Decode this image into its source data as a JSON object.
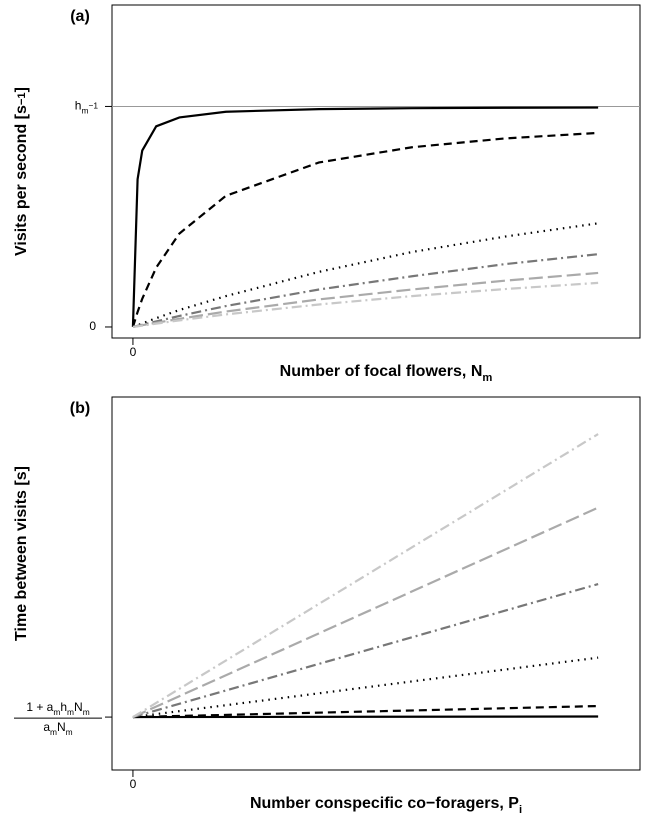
{
  "chart_data": [
    {
      "type": "line",
      "panel": "(a)",
      "ylabel": [
        {
          "text": "Visits per second [s"
        },
        {
          "text": "−1",
          "shift": "sup"
        },
        {
          "text": "]"
        }
      ],
      "xlabel": [
        {
          "text": "Number of focal flowers, N"
        },
        {
          "text": "m",
          "shift": "sub"
        }
      ],
      "x": [
        0,
        0.01,
        0.02,
        0.05,
        0.1,
        0.2,
        0.4,
        0.6,
        0.8,
        1.0
      ],
      "xlim": [
        -0.045,
        1.09
      ],
      "xticks": [
        0
      ],
      "ylim": [
        -0.05,
        1.46
      ],
      "yticks": [
        0,
        {
          "value": 1,
          "label": [
            {
              "text": "h"
            },
            {
              "text": "m",
              "shift": "sub"
            },
            {
              "text": "−1",
              "shift": "sup"
            }
          ]
        }
      ],
      "reference_line": 1,
      "series": [
        {
          "color": "#000000",
          "dash": "solid",
          "values": [
            0,
            0.67,
            0.8,
            0.91,
            0.95,
            0.976,
            0.988,
            0.992,
            0.994,
            0.995
          ]
        },
        {
          "color": "#000000",
          "dash": "dashed",
          "values": [
            0,
            0.068,
            0.128,
            0.269,
            0.424,
            0.595,
            0.746,
            0.815,
            0.855,
            0.88
          ]
        },
        {
          "color": "#000000",
          "dash": "dotted",
          "values": [
            0,
            0.008,
            0.016,
            0.04,
            0.077,
            0.14,
            0.25,
            0.34,
            0.41,
            0.47
          ]
        },
        {
          "color": "#777777",
          "dash": "dashdot",
          "values": [
            0,
            0.005,
            0.01,
            0.025,
            0.05,
            0.095,
            0.17,
            0.23,
            0.285,
            0.33
          ]
        },
        {
          "color": "#aaaaaa",
          "dash": "longdash",
          "values": [
            0,
            0.004,
            0.008,
            0.019,
            0.037,
            0.07,
            0.125,
            0.17,
            0.21,
            0.245
          ]
        },
        {
          "color": "#c8c8c8",
          "dash": "dashdot",
          "values": [
            0,
            0.003,
            0.006,
            0.015,
            0.03,
            0.057,
            0.102,
            0.14,
            0.172,
            0.2
          ]
        }
      ]
    },
    {
      "type": "line",
      "panel": "(b)",
      "ylabel": [
        {
          "text": "Time between visits [s]"
        }
      ],
      "xlabel": [
        {
          "text": "Number conspecific co−foragers, P"
        },
        {
          "text": "i",
          "shift": "sub"
        }
      ],
      "x": [
        0,
        1
      ],
      "xlim": [
        -0.045,
        1.09
      ],
      "xticks": [
        0
      ],
      "ylim": [
        -0.187,
        1.131
      ],
      "yticks": [
        {
          "value": 0,
          "label": {
            "numerator": [
              {
                "text": "1 + a"
              },
              {
                "text": "m",
                "shift": "sub"
              },
              {
                "text": "h"
              },
              {
                "text": "m",
                "shift": "sub"
              },
              {
                "text": "N"
              },
              {
                "text": "m",
                "shift": "sub"
              }
            ],
            "denominator": [
              {
                "text": "a"
              },
              {
                "text": "m",
                "shift": "sub"
              },
              {
                "text": "N"
              },
              {
                "text": "m",
                "shift": "sub"
              }
            ]
          }
        }
      ],
      "series": [
        {
          "color": "#000000",
          "dash": "solid",
          "values": [
            0,
            0.002
          ]
        },
        {
          "color": "#000000",
          "dash": "dashed",
          "values": [
            0,
            0.039
          ]
        },
        {
          "color": "#000000",
          "dash": "dotted",
          "values": [
            0,
            0.21
          ]
        },
        {
          "color": "#777777",
          "dash": "dashdot",
          "values": [
            0,
            0.47
          ]
        },
        {
          "color": "#aaaaaa",
          "dash": "longdash",
          "values": [
            0,
            0.74
          ]
        },
        {
          "color": "#c8c8c8",
          "dash": "dashdot",
          "values": [
            0,
            1.0
          ]
        }
      ]
    }
  ]
}
